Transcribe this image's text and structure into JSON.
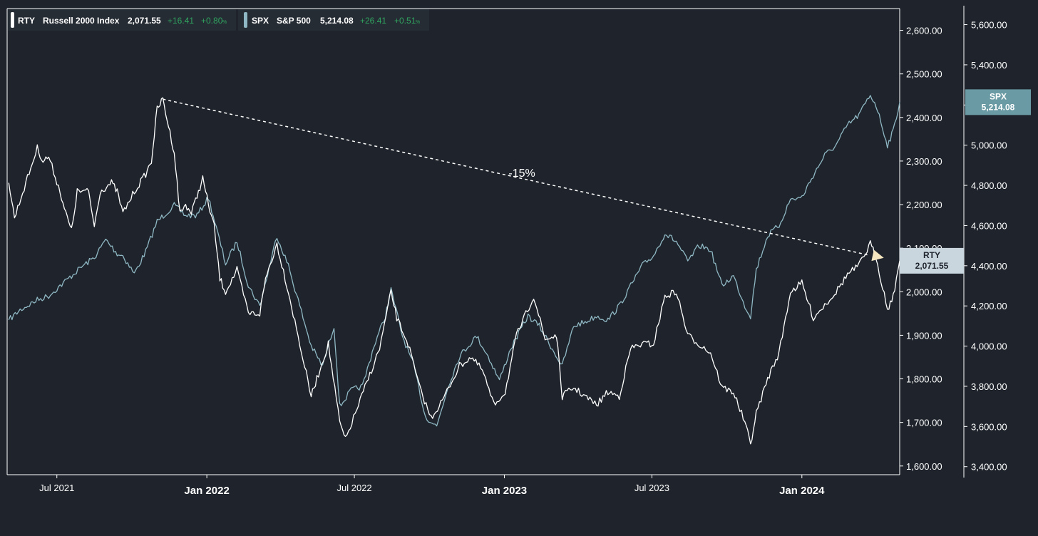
{
  "legend": {
    "rty": {
      "symbol": "RTY",
      "name": "Russell 2000 Index",
      "price": "2,071.55",
      "change": "+16.41",
      "pct": "+0.80",
      "pct_unit": "%"
    },
    "spx": {
      "symbol": "SPX",
      "name": "S&P 500",
      "price": "5,214.08",
      "change": "+26.41",
      "pct": "+0.51",
      "pct_unit": "%"
    }
  },
  "annotation": {
    "label": "-15%",
    "start": {
      "date": "2021-11-08",
      "value": 2442
    },
    "end": {
      "date": "2024-03-31",
      "value": 2082
    }
  },
  "badges": {
    "spx": {
      "symbol": "SPX",
      "value": "5,214.08"
    },
    "rty": {
      "symbol": "RTY",
      "value": "2,071.55"
    }
  },
  "colors": {
    "background": "#1f242c",
    "rty": "#ffffff",
    "spx": "#8fb8c4",
    "axis": "#ffffff",
    "positive": "#2fa35f",
    "annotation": "#ffffff",
    "arrow_head": "#f5e6c0",
    "spx_badge": "#6a9aa4",
    "rty_badge": "#c9d6de"
  },
  "chart_data": {
    "type": "line",
    "x_type": "date",
    "xlim": [
      "2021-05-01",
      "2024-04-30"
    ],
    "x_ticks": [
      {
        "label": "Jul 2021",
        "date": "2021-07-01",
        "major": false
      },
      {
        "label": "Jan 2022",
        "date": "2022-01-01",
        "major": true
      },
      {
        "label": "Jul 2022",
        "date": "2022-07-01",
        "major": false
      },
      {
        "label": "Jan 2023",
        "date": "2023-01-01",
        "major": true
      },
      {
        "label": "Jul 2023",
        "date": "2023-07-01",
        "major": false
      },
      {
        "label": "Jan 2024",
        "date": "2024-01-01",
        "major": true
      }
    ],
    "axes": {
      "rty": {
        "position": "right-inner",
        "ylim": [
          1580,
          2650
        ],
        "ticks": [
          1600,
          1700,
          1800,
          1900,
          2000,
          2100,
          2200,
          2300,
          2400,
          2500,
          2600
        ],
        "tick_labels": [
          "1,600.00",
          "1,700.00",
          "1,800.00",
          "1,900.00",
          "2,000.00",
          "2,100.00",
          "2,200.00",
          "2,300.00",
          "2,400.00",
          "2,500.00",
          "2,600.00"
        ]
      },
      "spx": {
        "position": "right-outer",
        "ylim": [
          3360,
          5680
        ],
        "ticks": [
          3400,
          3600,
          3800,
          4000,
          4200,
          4400,
          4600,
          4800,
          5000,
          5200,
          5400,
          5600
        ],
        "tick_labels": [
          "3,400.00",
          "3,600.00",
          "3,800.00",
          "4,000.00",
          "4,200.00",
          "4,400.00",
          "4,600.00",
          "4,800.00",
          "5,000.00",
          "5,200.00",
          "5,400.00",
          "5,600.00"
        ]
      }
    },
    "grid": false,
    "series": [
      {
        "name": "RTY",
        "axis": "rty",
        "points": [
          [
            "2021-05-03",
            2250
          ],
          [
            "2021-05-10",
            2170
          ],
          [
            "2021-05-24",
            2250
          ],
          [
            "2021-06-07",
            2330
          ],
          [
            "2021-06-14",
            2300
          ],
          [
            "2021-06-21",
            2310
          ],
          [
            "2021-07-05",
            2230
          ],
          [
            "2021-07-12",
            2180
          ],
          [
            "2021-07-19",
            2140
          ],
          [
            "2021-07-26",
            2230
          ],
          [
            "2021-08-09",
            2230
          ],
          [
            "2021-08-16",
            2150
          ],
          [
            "2021-08-23",
            2230
          ],
          [
            "2021-09-06",
            2250
          ],
          [
            "2021-09-13",
            2230
          ],
          [
            "2021-09-20",
            2180
          ],
          [
            "2021-10-04",
            2230
          ],
          [
            "2021-10-18",
            2270
          ],
          [
            "2021-10-25",
            2300
          ],
          [
            "2021-11-01",
            2420
          ],
          [
            "2021-11-08",
            2442
          ],
          [
            "2021-11-15",
            2380
          ],
          [
            "2021-11-22",
            2320
          ],
          [
            "2021-11-29",
            2180
          ],
          [
            "2021-12-06",
            2200
          ],
          [
            "2021-12-13",
            2180
          ],
          [
            "2021-12-20",
            2220
          ],
          [
            "2021-12-27",
            2260
          ],
          [
            "2022-01-03",
            2200
          ],
          [
            "2022-01-10",
            2150
          ],
          [
            "2022-01-17",
            2030
          ],
          [
            "2022-01-24",
            2000
          ],
          [
            "2022-02-07",
            2050
          ],
          [
            "2022-02-21",
            1950
          ],
          [
            "2022-03-07",
            1950
          ],
          [
            "2022-03-14",
            2030
          ],
          [
            "2022-03-28",
            2110
          ],
          [
            "2022-04-11",
            2000
          ],
          [
            "2022-04-25",
            1880
          ],
          [
            "2022-05-09",
            1760
          ],
          [
            "2022-05-16",
            1800
          ],
          [
            "2022-05-30",
            1880
          ],
          [
            "2022-06-13",
            1700
          ],
          [
            "2022-06-20",
            1660
          ],
          [
            "2022-07-04",
            1730
          ],
          [
            "2022-07-18",
            1800
          ],
          [
            "2022-08-01",
            1870
          ],
          [
            "2022-08-15",
            2000
          ],
          [
            "2022-08-22",
            1940
          ],
          [
            "2022-09-05",
            1880
          ],
          [
            "2022-09-19",
            1780
          ],
          [
            "2022-10-03",
            1710
          ],
          [
            "2022-10-17",
            1750
          ],
          [
            "2022-11-07",
            1830
          ],
          [
            "2022-11-21",
            1850
          ],
          [
            "2022-12-05",
            1820
          ],
          [
            "2022-12-19",
            1740
          ],
          [
            "2023-01-02",
            1770
          ],
          [
            "2023-01-16",
            1900
          ],
          [
            "2023-02-06",
            1990
          ],
          [
            "2023-02-20",
            1890
          ],
          [
            "2023-03-06",
            1900
          ],
          [
            "2023-03-13",
            1760
          ],
          [
            "2023-03-27",
            1780
          ],
          [
            "2023-04-10",
            1760
          ],
          [
            "2023-04-24",
            1740
          ],
          [
            "2023-05-08",
            1770
          ],
          [
            "2023-05-22",
            1760
          ],
          [
            "2023-06-05",
            1870
          ],
          [
            "2023-06-19",
            1880
          ],
          [
            "2023-07-03",
            1880
          ],
          [
            "2023-07-17",
            1990
          ],
          [
            "2023-07-31",
            2000
          ],
          [
            "2023-08-14",
            1900
          ],
          [
            "2023-08-28",
            1880
          ],
          [
            "2023-09-11",
            1860
          ],
          [
            "2023-09-25",
            1780
          ],
          [
            "2023-10-09",
            1770
          ],
          [
            "2023-10-23",
            1700
          ],
          [
            "2023-10-30",
            1650
          ],
          [
            "2023-11-06",
            1720
          ],
          [
            "2023-11-20",
            1800
          ],
          [
            "2023-12-04",
            1860
          ],
          [
            "2023-12-18",
            2000
          ],
          [
            "2024-01-01",
            2020
          ],
          [
            "2024-01-15",
            1940
          ],
          [
            "2024-01-29",
            1970
          ],
          [
            "2024-02-12",
            2000
          ],
          [
            "2024-02-26",
            2040
          ],
          [
            "2024-03-11",
            2060
          ],
          [
            "2024-03-25",
            2110
          ],
          [
            "2024-04-01",
            2080
          ],
          [
            "2024-04-15",
            1960
          ],
          [
            "2024-04-22",
            1990
          ],
          [
            "2024-04-30",
            2071
          ]
        ]
      },
      {
        "name": "SPX",
        "axis": "spx",
        "points": [
          [
            "2021-05-03",
            4130
          ],
          [
            "2021-05-17",
            4180
          ],
          [
            "2021-06-07",
            4230
          ],
          [
            "2021-06-21",
            4250
          ],
          [
            "2021-07-05",
            4300
          ],
          [
            "2021-07-19",
            4350
          ],
          [
            "2021-08-02",
            4400
          ],
          [
            "2021-08-16",
            4440
          ],
          [
            "2021-08-30",
            4530
          ],
          [
            "2021-09-13",
            4460
          ],
          [
            "2021-09-20",
            4450
          ],
          [
            "2021-10-04",
            4360
          ],
          [
            "2021-10-18",
            4470
          ],
          [
            "2021-11-01",
            4620
          ],
          [
            "2021-11-22",
            4700
          ],
          [
            "2021-12-06",
            4650
          ],
          [
            "2021-12-20",
            4650
          ],
          [
            "2022-01-03",
            4740
          ],
          [
            "2022-01-24",
            4410
          ],
          [
            "2022-02-07",
            4520
          ],
          [
            "2022-02-21",
            4300
          ],
          [
            "2022-03-07",
            4200
          ],
          [
            "2022-03-28",
            4550
          ],
          [
            "2022-04-11",
            4400
          ],
          [
            "2022-04-25",
            4200
          ],
          [
            "2022-05-09",
            4000
          ],
          [
            "2022-05-23",
            3900
          ],
          [
            "2022-06-06",
            4100
          ],
          [
            "2022-06-13",
            3700
          ],
          [
            "2022-06-27",
            3780
          ],
          [
            "2022-07-11",
            3800
          ],
          [
            "2022-07-25",
            4000
          ],
          [
            "2022-08-08",
            4150
          ],
          [
            "2022-08-15",
            4280
          ],
          [
            "2022-08-29",
            4050
          ],
          [
            "2022-09-12",
            3900
          ],
          [
            "2022-09-26",
            3650
          ],
          [
            "2022-10-10",
            3600
          ],
          [
            "2022-10-24",
            3800
          ],
          [
            "2022-11-07",
            3950
          ],
          [
            "2022-11-28",
            4050
          ],
          [
            "2022-12-12",
            3950
          ],
          [
            "2022-12-26",
            3830
          ],
          [
            "2023-01-09",
            3990
          ],
          [
            "2023-01-30",
            4150
          ],
          [
            "2023-02-13",
            4100
          ],
          [
            "2023-02-27",
            4000
          ],
          [
            "2023-03-13",
            3900
          ],
          [
            "2023-03-27",
            4100
          ],
          [
            "2023-04-10",
            4120
          ],
          [
            "2023-04-24",
            4150
          ],
          [
            "2023-05-08",
            4130
          ],
          [
            "2023-05-22",
            4200
          ],
          [
            "2023-06-05",
            4300
          ],
          [
            "2023-06-19",
            4400
          ],
          [
            "2023-07-03",
            4450
          ],
          [
            "2023-07-17",
            4560
          ],
          [
            "2023-07-31",
            4520
          ],
          [
            "2023-08-14",
            4420
          ],
          [
            "2023-08-28",
            4500
          ],
          [
            "2023-09-11",
            4480
          ],
          [
            "2023-09-25",
            4300
          ],
          [
            "2023-10-09",
            4350
          ],
          [
            "2023-10-23",
            4200
          ],
          [
            "2023-10-30",
            4150
          ],
          [
            "2023-11-06",
            4380
          ],
          [
            "2023-11-20",
            4550
          ],
          [
            "2023-12-04",
            4600
          ],
          [
            "2023-12-18",
            4730
          ],
          [
            "2024-01-01",
            4740
          ],
          [
            "2024-01-15",
            4850
          ],
          [
            "2024-01-29",
            4950
          ],
          [
            "2024-02-12",
            5000
          ],
          [
            "2024-02-26",
            5100
          ],
          [
            "2024-03-11",
            5150
          ],
          [
            "2024-03-25",
            5250
          ],
          [
            "2024-04-01",
            5200
          ],
          [
            "2024-04-15",
            5000
          ],
          [
            "2024-04-22",
            5070
          ],
          [
            "2024-04-30",
            5214
          ]
        ]
      }
    ]
  }
}
